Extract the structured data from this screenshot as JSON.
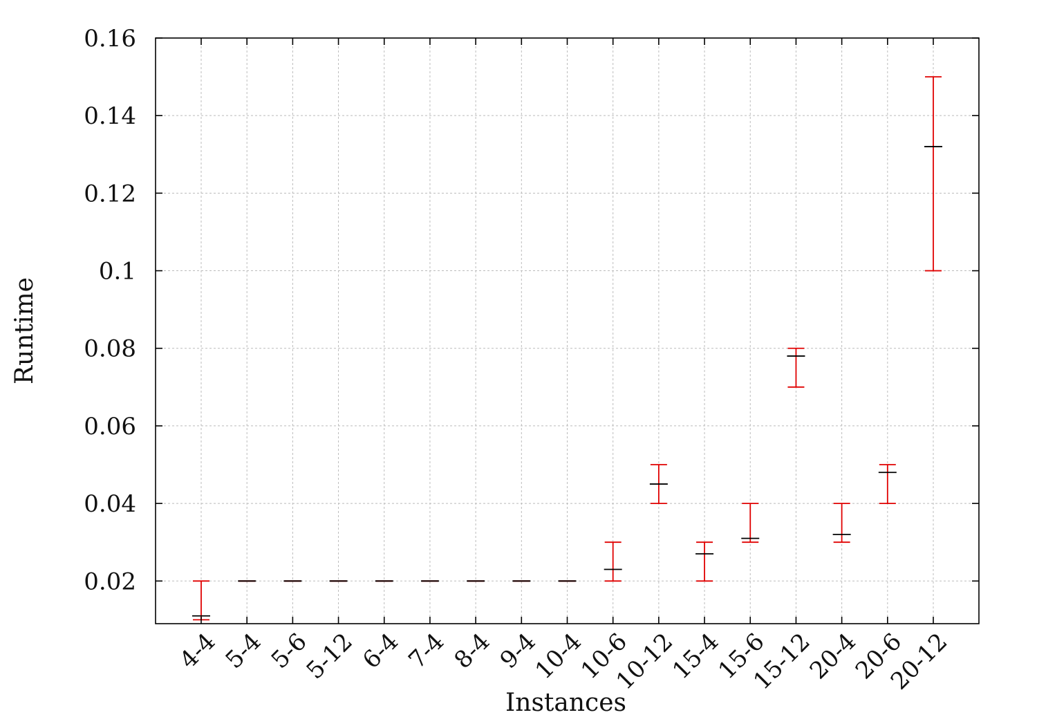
{
  "chart_data": {
    "type": "errorbar",
    "title": "",
    "xlabel": "Instances",
    "ylabel": "Runtime",
    "ylim": [
      0.009,
      0.16
    ],
    "yticks": [
      0.02,
      0.04,
      0.06,
      0.08,
      0.1,
      0.12,
      0.14,
      0.16
    ],
    "ytick_labels": [
      "0.02",
      "0.04",
      "0.06",
      "0.08",
      "0.1",
      "0.12",
      "0.14",
      "0.16"
    ],
    "grid": true,
    "categories": [
      "4-4",
      "5-4",
      "5-6",
      "5-12",
      "6-4",
      "7-4",
      "8-4",
      "9-4",
      "10-4",
      "10-6",
      "10-12",
      "15-4",
      "15-6",
      "15-12",
      "20-4",
      "20-6",
      "20-12"
    ],
    "series": [
      {
        "mean": [
          0.011,
          0.02,
          0.02,
          0.02,
          0.02,
          0.02,
          0.02,
          0.02,
          0.02,
          0.023,
          0.045,
          0.027,
          0.031,
          0.078,
          0.032,
          0.048,
          0.132
        ],
        "min": [
          0.01,
          0.02,
          0.02,
          0.02,
          0.02,
          0.02,
          0.02,
          0.02,
          0.02,
          0.02,
          0.04,
          0.02,
          0.03,
          0.07,
          0.03,
          0.04,
          0.1
        ],
        "max": [
          0.02,
          0.02,
          0.02,
          0.02,
          0.02,
          0.02,
          0.02,
          0.02,
          0.02,
          0.03,
          0.05,
          0.03,
          0.04,
          0.08,
          0.04,
          0.05,
          0.15
        ],
        "error_color": "#e00000",
        "mean_color": "#000000"
      }
    ]
  }
}
